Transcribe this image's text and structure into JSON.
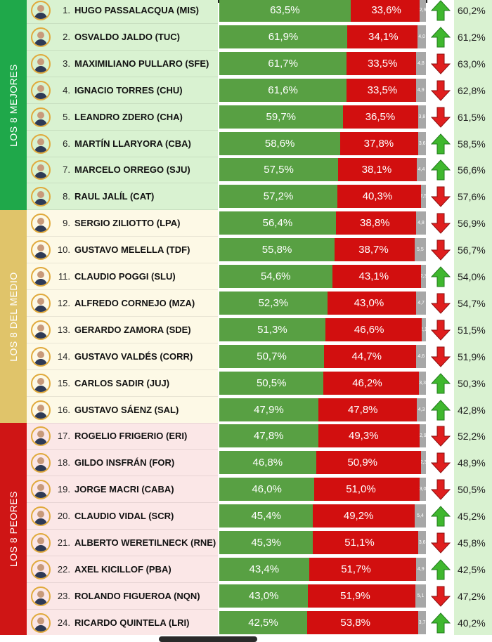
{
  "groups": [
    {
      "label": "LOS 8 MEJORES",
      "color": "#1fa84a",
      "bg": "#d9f2d1"
    },
    {
      "label": "LOS 8 DEL MEDIO",
      "color": "#e0c46a",
      "bg": "#fdf9e6"
    },
    {
      "label": "LOS 8 PEORES",
      "color": "#cf1515",
      "bg": "#fbe7e7"
    }
  ],
  "chart_data": {
    "type": "bar",
    "stacked": true,
    "categories": [
      "HUGO PASSALACQUA (MIS)",
      "OSVALDO JALDO (TUC)",
      "MAXIMILIANO PULLARO (SFE)",
      "IGNACIO TORRES (CHU)",
      "LEANDRO ZDERO (CHA)",
      "MARTÍN LLARYORA (CBA)",
      "MARCELO ORREGO (SJU)",
      "RAUL JALÍL (CAT)",
      "SERGIO ZILIOTTO (LPA)",
      "GUSTAVO MELELLA (TDF)",
      "CLAUDIO POGGI (SLU)",
      "ALFREDO CORNEJO (MZA)",
      "GERARDO ZAMORA (SDE)",
      "GUSTAVO VALDÉS (CORR)",
      "CARLOS SADIR (JUJ)",
      "GUSTAVO SÁENZ (SAL)",
      "ROGELIO FRIGERIO (ERI)",
      "GILDO INSFRÁN (FOR)",
      "JORGE MACRI (CABA)",
      "CLAUDIO VIDAL (SCR)",
      "ALBERTO WERETILNECK (RNE)",
      "AXEL KICILLOF (PBA)",
      "ROLANDO FIGUEROA (NQN)",
      "RICARDO QUINTELA (LRI)"
    ],
    "ranks": [
      "1.",
      "2.",
      "3.",
      "4.",
      "5.",
      "6.",
      "7.",
      "8.",
      "9.",
      "10.",
      "11.",
      "12.",
      "13.",
      "14.",
      "15.",
      "16.",
      "17.",
      "18.",
      "19.",
      "20.",
      "21.",
      "22.",
      "23.",
      "24."
    ],
    "series": [
      {
        "color": "#58a043",
        "values": [
          63.5,
          61.9,
          61.7,
          61.6,
          59.7,
          58.6,
          57.5,
          57.2,
          56.4,
          55.8,
          54.6,
          52.3,
          51.3,
          50.7,
          50.5,
          47.9,
          47.8,
          46.8,
          46.0,
          45.4,
          45.3,
          43.4,
          43.0,
          42.5
        ],
        "labels": [
          "63,5%",
          "61,9%",
          "61,7%",
          "61,6%",
          "59,7%",
          "58,6%",
          "57,5%",
          "57,2%",
          "56,4%",
          "55,8%",
          "54,6%",
          "52,3%",
          "51,3%",
          "50,7%",
          "50,5%",
          "47,9%",
          "47,8%",
          "46,8%",
          "46,0%",
          "45,4%",
          "45,3%",
          "43,4%",
          "43,0%",
          "42,5%"
        ]
      },
      {
        "color": "#d20f0f",
        "values": [
          33.6,
          34.1,
          33.5,
          33.5,
          36.5,
          37.8,
          38.1,
          40.3,
          38.8,
          38.7,
          43.1,
          43.0,
          46.6,
          44.7,
          46.2,
          47.8,
          49.3,
          50.9,
          51.0,
          49.2,
          51.1,
          51.7,
          51.9,
          53.8
        ],
        "labels": [
          "33,6%",
          "34,1%",
          "33,5%",
          "33,5%",
          "36,5%",
          "37,8%",
          "38,1%",
          "40,3%",
          "38,8%",
          "38,7%",
          "43,1%",
          "43,0%",
          "46,6%",
          "44,7%",
          "46,2%",
          "47,8%",
          "49,3%",
          "50,9%",
          "51,0%",
          "49,2%",
          "51,1%",
          "51,7%",
          "51,9%",
          "53,8%"
        ]
      },
      {
        "color": "#a7a7a7",
        "values": [
          2.9,
          4.0,
          4.8,
          4.9,
          3.8,
          3.6,
          4.4,
          2.5,
          4.8,
          5.5,
          2.3,
          4.7,
          2.1,
          4.6,
          3.3,
          4.3,
          2.9,
          2.3,
          3.0,
          5.4,
          3.6,
          4.9,
          5.1,
          3.7
        ],
        "labels": [
          "2,9",
          "4,0",
          "4,8",
          "4,9",
          "3,8",
          "3,6",
          "4,4",
          "2,5",
          "4,8",
          "5,5",
          "2,3",
          "4,7",
          "2,1",
          "4,6",
          "3,3",
          "4,3",
          "2,9",
          "2,3",
          "3,0",
          "5,4",
          "3,6",
          "4,9",
          "5,1",
          "3,7"
        ]
      }
    ],
    "trend": [
      "up",
      "up",
      "down",
      "down",
      "down",
      "up",
      "up",
      "down",
      "down",
      "down",
      "up",
      "down",
      "down",
      "down",
      "up",
      "up",
      "down",
      "down",
      "down",
      "up",
      "down",
      "up",
      "down",
      "up"
    ],
    "previous": [
      "60,2%",
      "61,2%",
      "63,0%",
      "62,8%",
      "61,5%",
      "58,5%",
      "56,6%",
      "57,6%",
      "56,9%",
      "56,7%",
      "54,0%",
      "54,7%",
      "51,5%",
      "51,9%",
      "50,3%",
      "42,8%",
      "52,2%",
      "48,9%",
      "50,5%",
      "45,2%",
      "45,8%",
      "42,5%",
      "47,2%",
      "40,2%"
    ]
  }
}
